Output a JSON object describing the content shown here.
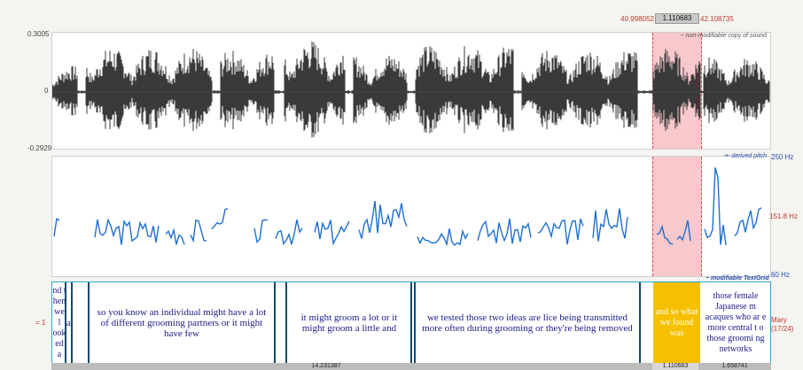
{
  "selection": {
    "start": "40.998052",
    "duration": "1.110683",
    "end": "42.108735"
  },
  "waveform": {
    "max": "0.3005",
    "zero": "0",
    "min": "-0.2929",
    "note": "~ non-modifiable copy of sound"
  },
  "pitch": {
    "note": "-•- derived pitch",
    "top": "250 Hz",
    "mid": "151.8 Hz",
    "bottom": "60 Hz"
  },
  "textgrid": {
    "note": "~ modifiable TextGrid",
    "tier_marker": "= 1",
    "speaker": "Mary",
    "count": "(17/24)",
    "intervals": [
      "a",
      "nd t hen we l ook ed a",
      "so you know an individual might have a lot of different grooming partners or it might have few",
      "it might groom a lot or it might groom a little and",
      "we tested those two ideas are lice being transmitted more often during grooming or they're being removed",
      "and so what we found was",
      "those female Japanese m acaques who ar e more central t o those groomi ng networks"
    ]
  },
  "durations": {
    "visible": "14.231387",
    "selected": "1.110683",
    "after": "1.658741"
  },
  "colors": {
    "selection": "#f7c9cc",
    "highlight": "#f6c000",
    "pitch": "#1f6fd0"
  }
}
